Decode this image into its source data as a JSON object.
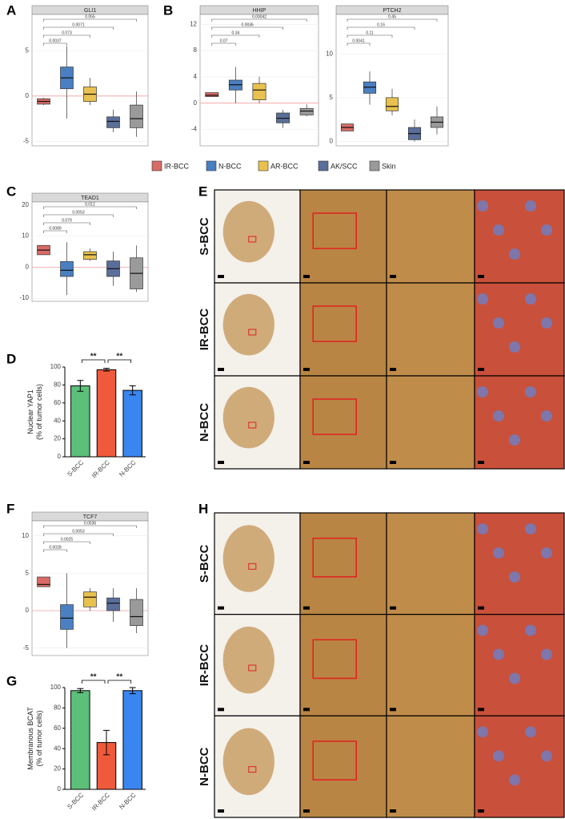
{
  "panels": [
    "A",
    "B",
    "C",
    "D",
    "E",
    "F",
    "G",
    "H"
  ],
  "groups": [
    {
      "name": "IR-BCC",
      "color": "#d96b66"
    },
    {
      "name": "N-BCC",
      "color": "#4a7fc1"
    },
    {
      "name": "AR-BCC",
      "color": "#e8c14e"
    },
    {
      "name": "AK/SCC",
      "color": "#5a6e9a"
    },
    {
      "name": "Skin",
      "color": "#9a9a9a"
    }
  ],
  "chart_data": [
    {
      "type": "box",
      "title": "GLI1",
      "ylim": [
        -5.5,
        9
      ],
      "yticks": [
        -5,
        0,
        5
      ],
      "hline": 0,
      "boxes": [
        {
          "whislo": -1,
          "q1": -0.9,
          "med": -0.6,
          "q3": -0.3,
          "whishi": -0.2
        },
        {
          "whislo": -2.5,
          "q1": 0.8,
          "med": 2,
          "q3": 3.2,
          "whishi": 5.5
        },
        {
          "whislo": -1,
          "q1": -0.6,
          "med": 0.2,
          "q3": 1,
          "whishi": 2
        },
        {
          "whislo": -4,
          "q1": -3.5,
          "med": -2.8,
          "q3": -2.3,
          "whishi": -1.5
        },
        {
          "whislo": -4.5,
          "q1": -3.5,
          "med": -2.5,
          "q3": -1,
          "whishi": 0.5
        }
      ],
      "comparisons": [
        "0.0037",
        "0.073",
        "0.0071",
        "0.055"
      ]
    },
    {
      "type": "box",
      "title": "HHIP",
      "ylim": [
        -6.5,
        13.5
      ],
      "yticks": [
        -4,
        0,
        4,
        8,
        12
      ],
      "hline": 0,
      "boxes": [
        {
          "whislo": 1,
          "q1": 1,
          "med": 1.2,
          "q3": 1.6,
          "whishi": 1.6
        },
        {
          "whislo": 0,
          "q1": 2,
          "med": 2.8,
          "q3": 3.5,
          "whishi": 5.5
        },
        {
          "whislo": 0,
          "q1": 0.5,
          "med": 2,
          "q3": 3,
          "whishi": 4
        },
        {
          "whislo": -3.8,
          "q1": -3,
          "med": -2.3,
          "q3": -1.5,
          "whishi": -1
        },
        {
          "whislo": -2,
          "q1": -1.8,
          "med": -1.2,
          "q3": -0.8,
          "whishi": -0.2
        }
      ],
      "comparisons": [
        "0.07",
        "0.34",
        "0.0036",
        "0.00042"
      ]
    },
    {
      "type": "box",
      "title": "PTCH2",
      "ylim": [
        -0.5,
        14.5
      ],
      "yticks": [
        0,
        5,
        10
      ],
      "boxes": [
        {
          "whislo": 1.2,
          "q1": 1.2,
          "med": 1.6,
          "q3": 2,
          "whishi": 2
        },
        {
          "whislo": 4.2,
          "q1": 5.5,
          "med": 6.2,
          "q3": 6.8,
          "whishi": 8
        },
        {
          "whislo": 3,
          "q1": 3.5,
          "med": 4,
          "q3": 5,
          "whishi": 6
        },
        {
          "whislo": 0,
          "q1": 0.2,
          "med": 0.9,
          "q3": 1.6,
          "whishi": 2.5
        },
        {
          "whislo": 0.8,
          "q1": 1.6,
          "med": 2.2,
          "q3": 2.8,
          "whishi": 4
        }
      ],
      "comparisons": [
        "0.0041",
        "0.11",
        "0.16",
        "0.45"
      ]
    },
    {
      "type": "box",
      "title": "TEAD1",
      "ylim": [
        -11,
        21
      ],
      "yticks": [
        -10,
        0,
        10,
        20
      ],
      "hline": 0,
      "boxes": [
        {
          "whislo": 4,
          "q1": 4,
          "med": 5.5,
          "q3": 7,
          "whishi": 7
        },
        {
          "whislo": -9,
          "q1": -3,
          "med": -1,
          "q3": 1.8,
          "whishi": 8
        },
        {
          "whislo": 2,
          "q1": 2.5,
          "med": 4,
          "q3": 5,
          "whishi": 6
        },
        {
          "whislo": -6,
          "q1": -3,
          "med": -0.5,
          "q3": 2,
          "whishi": 5
        },
        {
          "whislo": -8,
          "q1": -7,
          "med": -2,
          "q3": 3,
          "whishi": 7
        }
      ],
      "comparisons": [
        "0.0089",
        "0.079",
        "0.0053",
        "0.012"
      ]
    },
    {
      "type": "bar",
      "categories": [
        "S-BCC",
        "IR-BCC",
        "N-BCC"
      ],
      "values": [
        79,
        97,
        74
      ],
      "errors": [
        6,
        1.5,
        5
      ],
      "colors": [
        "#5cbf7a",
        "#ef5a3c",
        "#3a86f0"
      ],
      "ylim": [
        0,
        100
      ],
      "yticks": [
        0,
        20,
        40,
        60,
        80,
        100
      ],
      "ylabel": [
        "Nuclear YAP1",
        "(% of tumor cells)"
      ],
      "significance": [
        "**",
        "**"
      ]
    },
    {
      "type": "box",
      "title": "TCF7",
      "ylim": [
        -6,
        12
      ],
      "yticks": [
        -5,
        0,
        5,
        10
      ],
      "hline": 0,
      "boxes": [
        {
          "whislo": 3.2,
          "q1": 3.2,
          "med": 3.5,
          "q3": 4.5,
          "whishi": 4.5
        },
        {
          "whislo": -5,
          "q1": -2.5,
          "med": -1,
          "q3": 0.8,
          "whishi": 5
        },
        {
          "whislo": 0,
          "q1": 0.5,
          "med": 1.8,
          "q3": 2.5,
          "whishi": 3
        },
        {
          "whislo": -1.5,
          "q1": 0,
          "med": 1,
          "q3": 1.7,
          "whishi": 3
        },
        {
          "whislo": -3,
          "q1": -2,
          "med": -0.8,
          "q3": 1.5,
          "whishi": 3
        }
      ],
      "comparisons": [
        "0.0028",
        "0.0025",
        "0.0053",
        "0.0036"
      ]
    },
    {
      "type": "bar",
      "categories": [
        "S-BCC",
        "IR-BCC",
        "N-BCC"
      ],
      "values": [
        97,
        46,
        97
      ],
      "errors": [
        2,
        12,
        3
      ],
      "colors": [
        "#5cbf7a",
        "#ef5a3c",
        "#3a86f0"
      ],
      "ylim": [
        0,
        100
      ],
      "yticks": [
        0,
        20,
        40,
        60,
        80,
        100
      ],
      "ylabel": [
        "Membranous BCAT",
        "(% of tumor cells)"
      ],
      "significance": [
        "**",
        "**"
      ]
    }
  ],
  "image_panels": [
    {
      "rows": [
        "S-BCC",
        "IR-BCC",
        "N-BCC"
      ]
    },
    {
      "rows": [
        "S-BCC",
        "IR-BCC",
        "N-BCC"
      ]
    }
  ]
}
